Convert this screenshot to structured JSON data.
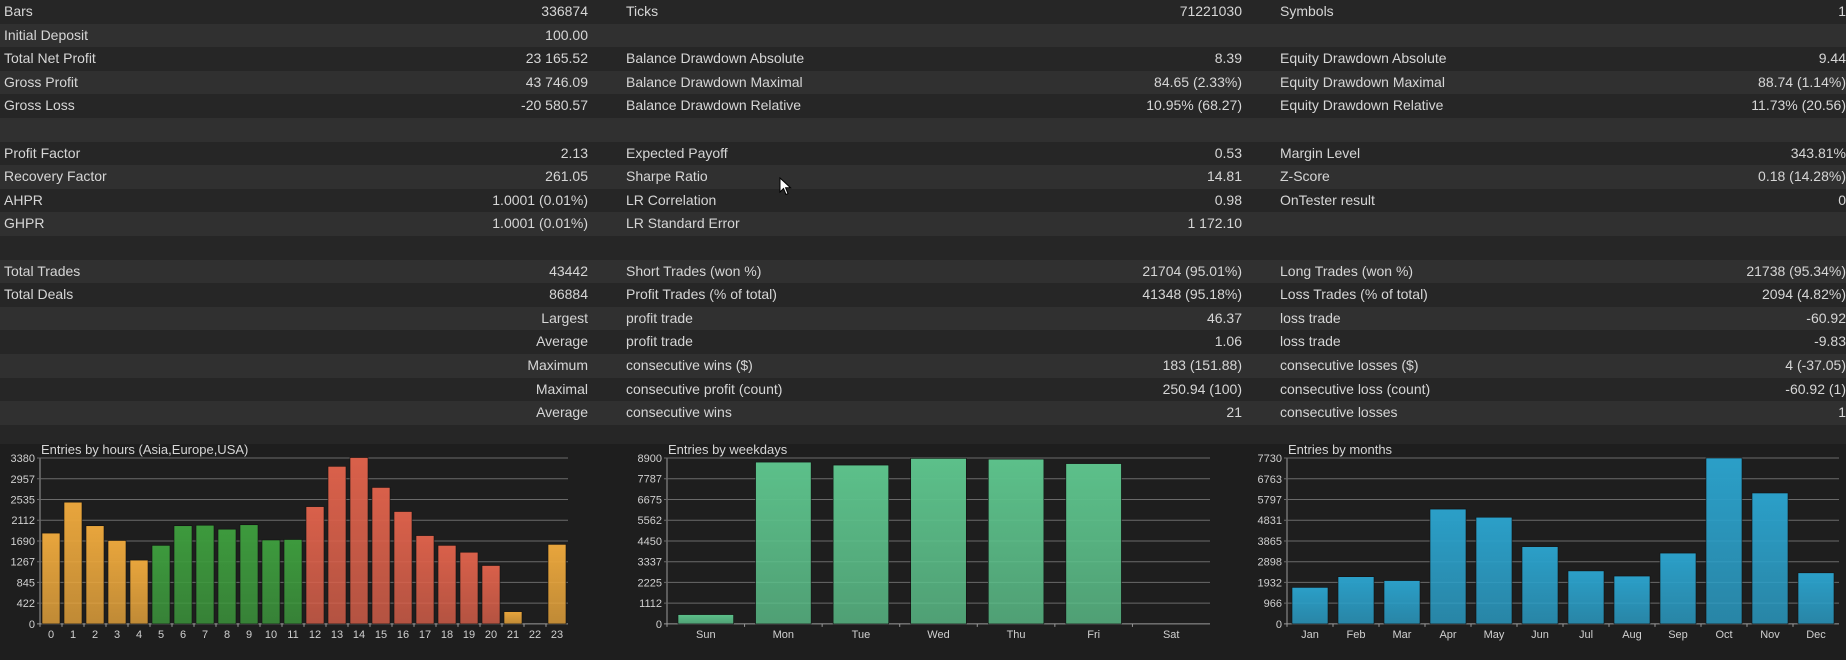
{
  "stats_rows": [
    {
      "tone": "dark",
      "cells": [
        "Bars",
        "336874",
        "Ticks",
        "71221030",
        "Symbols",
        "1"
      ]
    },
    {
      "tone": "light",
      "cells": [
        "Initial Deposit",
        "100.00",
        "",
        "",
        "",
        ""
      ]
    },
    {
      "tone": "dark",
      "cells": [
        "Total Net Profit",
        "23 165.52",
        "Balance Drawdown Absolute",
        "8.39",
        "Equity Drawdown Absolute",
        "9.44"
      ]
    },
    {
      "tone": "light",
      "cells": [
        "Gross Profit",
        "43 746.09",
        "Balance Drawdown Maximal",
        "84.65 (2.33%)",
        "Equity Drawdown Maximal",
        "88.74 (1.14%)"
      ]
    },
    {
      "tone": "dark",
      "cells": [
        "Gross Loss",
        "-20 580.57",
        "Balance Drawdown Relative",
        "10.95% (68.27)",
        "Equity Drawdown Relative",
        "11.73% (20.56)"
      ]
    },
    {
      "tone": "light",
      "cells": [
        "",
        "",
        "",
        "",
        "",
        ""
      ]
    },
    {
      "tone": "dark",
      "cells": [
        "Profit Factor",
        "2.13",
        "Expected Payoff",
        "0.53",
        "Margin Level",
        "343.81%"
      ]
    },
    {
      "tone": "light",
      "cells": [
        "Recovery Factor",
        "261.05",
        "Sharpe Ratio",
        "14.81",
        "Z-Score",
        "0.18 (14.28%)"
      ]
    },
    {
      "tone": "dark",
      "cells": [
        "AHPR",
        "1.0001 (0.01%)",
        "LR Correlation",
        "0.98",
        "OnTester result",
        "0"
      ]
    },
    {
      "tone": "light",
      "cells": [
        "GHPR",
        "1.0001 (0.01%)",
        "LR Standard Error",
        "1 172.10",
        "",
        ""
      ]
    },
    {
      "tone": "dark",
      "cells": [
        "",
        "",
        "",
        "",
        "",
        ""
      ]
    },
    {
      "tone": "light",
      "cells": [
        "Total Trades",
        "43442",
        "Short Trades (won %)",
        "21704 (95.01%)",
        "Long Trades (won %)",
        "21738 (95.34%)"
      ]
    },
    {
      "tone": "dark",
      "cells": [
        "Total Deals",
        "86884",
        "Profit Trades (% of total)",
        "41348 (95.18%)",
        "Loss Trades (% of total)",
        "2094 (4.82%)"
      ]
    },
    {
      "tone": "light",
      "cells": [
        "",
        "Largest",
        "profit trade",
        "46.37",
        "loss trade",
        "-60.92"
      ]
    },
    {
      "tone": "dark",
      "cells": [
        "",
        "Average",
        "profit trade",
        "1.06",
        "loss trade",
        "-9.83"
      ]
    },
    {
      "tone": "light",
      "cells": [
        "",
        "Maximum",
        "consecutive wins ($)",
        "183 (151.88)",
        "consecutive losses ($)",
        "4 (-37.05)"
      ]
    },
    {
      "tone": "dark",
      "cells": [
        "",
        "Maximal",
        "consecutive profit (count)",
        "250.94 (100)",
        "consecutive loss (count)",
        "-60.92 (1)"
      ]
    },
    {
      "tone": "light",
      "cells": [
        "",
        "Average",
        "consecutive wins",
        "21",
        "consecutive losses",
        "1"
      ]
    },
    {
      "tone": "dark",
      "cells": [
        "",
        "",
        "",
        "",
        "",
        ""
      ]
    }
  ],
  "chart_data": [
    {
      "type": "bar",
      "title": "Entries by hours (Asia,Europe,USA)",
      "categories": [
        "0",
        "1",
        "2",
        "3",
        "4",
        "5",
        "6",
        "7",
        "8",
        "9",
        "10",
        "11",
        "12",
        "13",
        "14",
        "15",
        "16",
        "17",
        "18",
        "19",
        "20",
        "21",
        "22",
        "23"
      ],
      "values": [
        1850,
        2480,
        2000,
        1700,
        1300,
        1600,
        2000,
        2010,
        1930,
        2020,
        1710,
        1720,
        2390,
        3210,
        3390,
        2780,
        2290,
        1800,
        1600,
        1460,
        1190,
        250,
        0,
        1620
      ],
      "yticks": [
        "0",
        "422",
        "845",
        "1267",
        "1690",
        "2112",
        "2535",
        "2957",
        "3380"
      ],
      "ylim": [
        0,
        3380
      ],
      "colors": [
        "#e8a53c",
        "#e8a53c",
        "#e8a53c",
        "#e8a53c",
        "#e8a53c",
        "#3d9a3d",
        "#3d9a3d",
        "#3d9a3d",
        "#3d9a3d",
        "#3d9a3d",
        "#3d9a3d",
        "#3d9a3d",
        "#d9604a",
        "#d9604a",
        "#d9604a",
        "#d9604a",
        "#d9604a",
        "#d9604a",
        "#d9604a",
        "#d9604a",
        "#d9604a",
        "#e8a53c",
        "#e8a53c",
        "#e8a53c"
      ]
    },
    {
      "type": "bar",
      "title": "Entries by weekdays",
      "categories": [
        "Sun",
        "Mon",
        "Tue",
        "Wed",
        "Thu",
        "Fri",
        "Sat"
      ],
      "values": [
        500,
        8680,
        8520,
        8880,
        8840,
        8600,
        0
      ],
      "yticks": [
        "0",
        "1112",
        "2225",
        "3337",
        "4450",
        "5562",
        "6675",
        "7787",
        "8900"
      ],
      "ylim": [
        0,
        8900
      ],
      "colors": [
        "#5cc08a",
        "#5cc08a",
        "#5cc08a",
        "#5cc08a",
        "#5cc08a",
        "#5cc08a",
        "#5cc08a"
      ]
    },
    {
      "type": "bar",
      "title": "Entries by months",
      "categories": [
        "Jan",
        "Feb",
        "Mar",
        "Apr",
        "May",
        "Jun",
        "Jul",
        "Aug",
        "Sep",
        "Oct",
        "Nov",
        "Dec"
      ],
      "values": [
        1700,
        2200,
        2020,
        5350,
        4970,
        3600,
        2470,
        2230,
        3300,
        7730,
        6100,
        2380
      ],
      "yticks": [
        "0",
        "966",
        "1932",
        "2898",
        "3865",
        "4831",
        "5797",
        "6763",
        "7730"
      ],
      "ylim": [
        0,
        7730
      ],
      "colors": [
        "#2b9fc8",
        "#2b9fc8",
        "#2b9fc8",
        "#2b9fc8",
        "#2b9fc8",
        "#2b9fc8",
        "#2b9fc8",
        "#2b9fc8",
        "#2b9fc8",
        "#2b9fc8",
        "#2b9fc8",
        "#2b9fc8"
      ]
    }
  ]
}
